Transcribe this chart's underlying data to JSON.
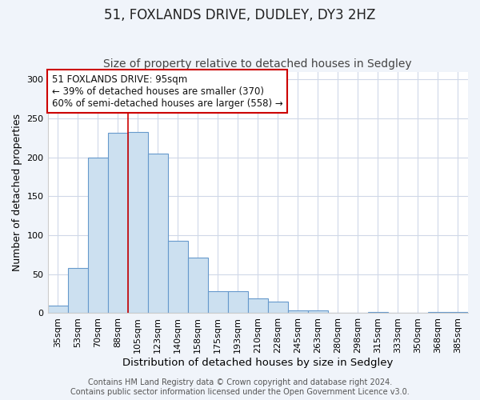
{
  "title": "51, FOXLANDS DRIVE, DUDLEY, DY3 2HZ",
  "subtitle": "Size of property relative to detached houses in Sedgley",
  "xlabel": "Distribution of detached houses by size in Sedgley",
  "ylabel": "Number of detached properties",
  "categories": [
    "35sqm",
    "53sqm",
    "70sqm",
    "88sqm",
    "105sqm",
    "123sqm",
    "140sqm",
    "158sqm",
    "175sqm",
    "193sqm",
    "210sqm",
    "228sqm",
    "245sqm",
    "263sqm",
    "280sqm",
    "298sqm",
    "315sqm",
    "333sqm",
    "350sqm",
    "368sqm",
    "385sqm"
  ],
  "values": [
    10,
    58,
    200,
    232,
    233,
    205,
    93,
    71,
    28,
    28,
    19,
    15,
    4,
    4,
    0,
    0,
    2,
    0,
    0,
    2,
    2
  ],
  "bar_color": "#cce0f0",
  "bar_edge_color": "#6699cc",
  "plot_bg_color": "#ffffff",
  "fig_bg_color": "#f0f4fa",
  "grid_color": "#d0d8e8",
  "annotation_text": "51 FOXLANDS DRIVE: 95sqm\n← 39% of detached houses are smaller (370)\n60% of semi-detached houses are larger (558) →",
  "annotation_box_edge_color": "#cc0000",
  "vline_x": 3.5,
  "vline_color": "#cc0000",
  "ylim": [
    0,
    310
  ],
  "yticks": [
    0,
    50,
    100,
    150,
    200,
    250,
    300
  ],
  "footer": "Contains HM Land Registry data © Crown copyright and database right 2024.\nContains public sector information licensed under the Open Government Licence v3.0.",
  "title_fontsize": 12,
  "subtitle_fontsize": 10,
  "xlabel_fontsize": 9.5,
  "ylabel_fontsize": 9,
  "annotation_fontsize": 8.5,
  "tick_fontsize": 8,
  "footer_fontsize": 7
}
